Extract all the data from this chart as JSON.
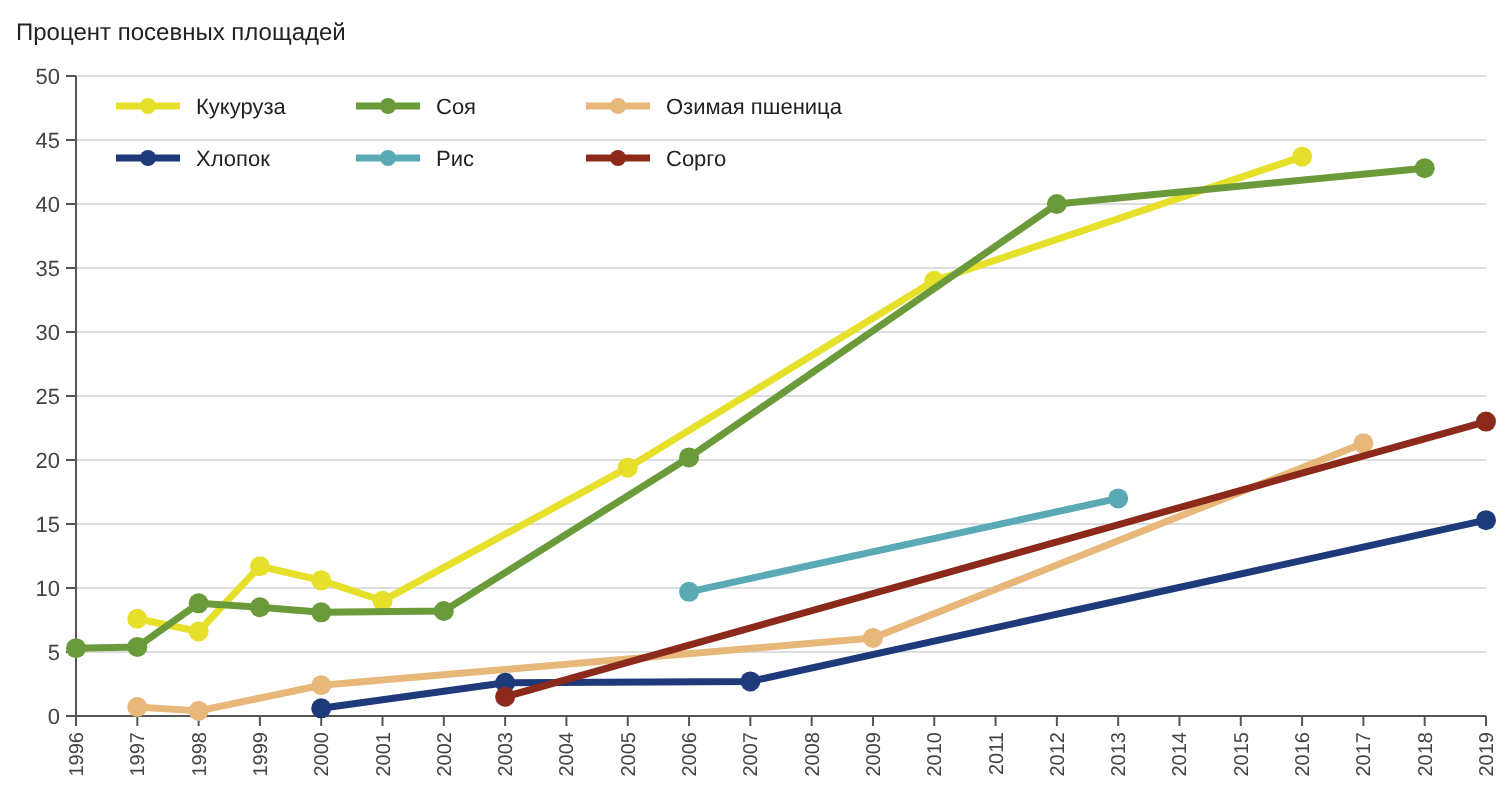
{
  "chart_data": {
    "type": "line",
    "title": "Процент посевных площадей",
    "xlim": [
      1996,
      2019
    ],
    "xticks": [
      1996,
      1997,
      1998,
      1999,
      2000,
      2001,
      2002,
      2003,
      2004,
      2005,
      2006,
      2007,
      2008,
      2009,
      2010,
      2011,
      2012,
      2013,
      2014,
      2015,
      2016,
      2017,
      2018,
      2019
    ],
    "ylim": [
      0,
      50
    ],
    "yticks": [
      0,
      5,
      10,
      15,
      20,
      25,
      30,
      35,
      40,
      45,
      50
    ],
    "grid": "y",
    "legend": "top left",
    "marker": "circle",
    "line_style": "solid",
    "series": [
      {
        "name": "Кукуруза",
        "color": "#e6e02a",
        "x": [
          1997,
          1998,
          1999,
          2000,
          2001,
          2005,
          2010,
          2016
        ],
        "values": [
          7.6,
          6.6,
          11.7,
          10.6,
          9.0,
          19.4,
          34,
          43.7
        ]
      },
      {
        "name": "Соя",
        "color": "#6a9a3a",
        "x": [
          1996,
          1997,
          1998,
          1999,
          2000,
          2002,
          2006,
          2012,
          2018
        ],
        "values": [
          5.3,
          5.4,
          8.8,
          8.5,
          8.1,
          8.2,
          20.2,
          40.0,
          42.8
        ]
      },
      {
        "name": "Озимая пшеница",
        "color": "#e8b77a",
        "x": [
          1997,
          1998,
          2000,
          2009,
          2017
        ],
        "values": [
          0.7,
          0.4,
          2.4,
          6.1,
          21.3
        ]
      },
      {
        "name": "Хлопок",
        "color": "#1f3a7a",
        "x": [
          2000,
          2003,
          2007,
          2019
        ],
        "values": [
          0.6,
          2.6,
          2.7,
          15.3
        ]
      },
      {
        "name": "Рис",
        "color": "#5aaab5",
        "x": [
          2006,
          2013
        ],
        "values": [
          9.7,
          17.0
        ]
      },
      {
        "name": "Сорго",
        "color": "#8b2a1a",
        "x": [
          2003,
          2019
        ],
        "values": [
          1.5,
          23
        ]
      }
    ]
  }
}
